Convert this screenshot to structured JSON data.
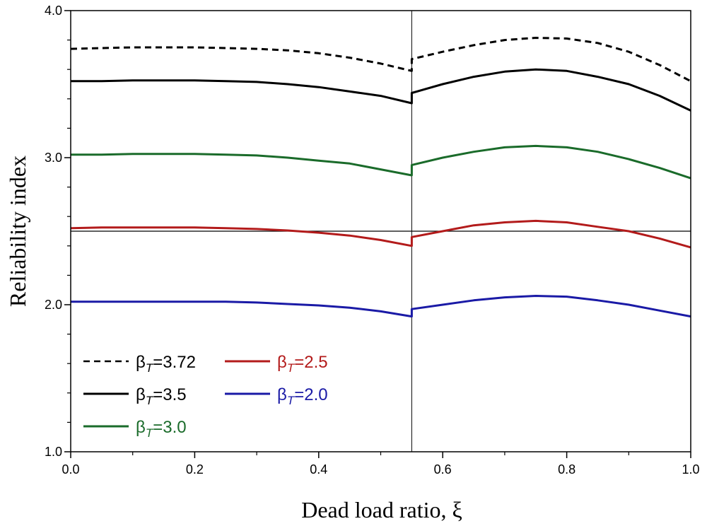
{
  "chart_data": {
    "type": "line",
    "xlabel": "Dead load ratio, ξ",
    "ylabel": "Reliability index",
    "xlim": [
      0.0,
      1.0
    ],
    "ylim": [
      1.0,
      4.0
    ],
    "x_ticks": [
      "0.0",
      "0.2",
      "0.4",
      "0.6",
      "0.8",
      "1.0"
    ],
    "y_ticks": [
      "1.0",
      "2.0",
      "3.0",
      "4.0"
    ],
    "grid": false,
    "reference_lines": {
      "vertical_x": 0.55,
      "horizontal_y": 2.5
    },
    "legend": {
      "placement": "bottom-left",
      "symbol": "β",
      "subscript": "T"
    },
    "x": [
      0.0,
      0.05,
      0.1,
      0.15,
      0.2,
      0.25,
      0.3,
      0.35,
      0.4,
      0.45,
      0.5,
      0.55,
      0.55,
      0.6,
      0.65,
      0.7,
      0.75,
      0.8,
      0.85,
      0.9,
      0.95,
      1.0
    ],
    "series": [
      {
        "name": "3.72",
        "color": "#000000",
        "style": "dashed",
        "values": [
          3.74,
          3.745,
          3.75,
          3.75,
          3.75,
          3.745,
          3.74,
          3.73,
          3.71,
          3.68,
          3.64,
          3.59,
          3.67,
          3.72,
          3.765,
          3.8,
          3.815,
          3.81,
          3.78,
          3.72,
          3.63,
          3.52
        ]
      },
      {
        "name": "3.5",
        "color": "#000000",
        "style": "solid",
        "values": [
          3.52,
          3.52,
          3.525,
          3.525,
          3.525,
          3.52,
          3.515,
          3.5,
          3.48,
          3.45,
          3.42,
          3.37,
          3.44,
          3.5,
          3.55,
          3.585,
          3.6,
          3.59,
          3.55,
          3.5,
          3.42,
          3.32
        ]
      },
      {
        "name": "3.0",
        "color": "#1a6b2a",
        "style": "solid",
        "values": [
          3.02,
          3.02,
          3.025,
          3.025,
          3.025,
          3.02,
          3.015,
          3.0,
          2.98,
          2.96,
          2.92,
          2.88,
          2.95,
          3.0,
          3.04,
          3.07,
          3.08,
          3.07,
          3.04,
          2.99,
          2.93,
          2.86
        ]
      },
      {
        "name": "2.5",
        "color": "#b31b1b",
        "style": "solid",
        "values": [
          2.52,
          2.525,
          2.525,
          2.525,
          2.525,
          2.52,
          2.515,
          2.505,
          2.49,
          2.47,
          2.44,
          2.4,
          2.46,
          2.5,
          2.54,
          2.56,
          2.57,
          2.56,
          2.53,
          2.5,
          2.45,
          2.39
        ]
      },
      {
        "name": "2.0",
        "color": "#1a1aa6",
        "style": "solid",
        "values": [
          2.02,
          2.02,
          2.02,
          2.02,
          2.02,
          2.02,
          2.015,
          2.005,
          1.995,
          1.98,
          1.955,
          1.92,
          1.97,
          2.0,
          2.03,
          2.05,
          2.06,
          2.055,
          2.03,
          2.0,
          1.96,
          1.92
        ]
      }
    ]
  }
}
